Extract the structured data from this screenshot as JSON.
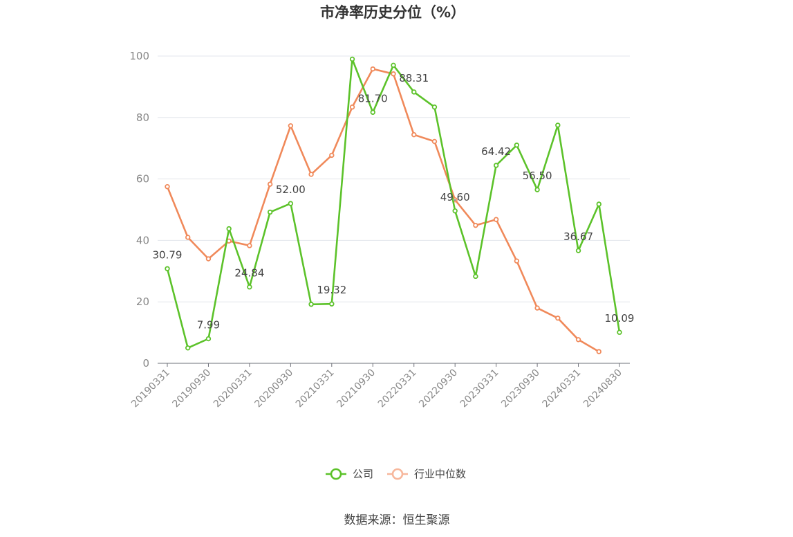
{
  "chart_data": {
    "type": "line",
    "title": "市净率历史分位（%）",
    "x": [
      "20190331",
      "20190630",
      "20190930",
      "20191231",
      "20200331",
      "20200630",
      "20200930",
      "20201231",
      "20210331",
      "20210630",
      "20210930",
      "20211231",
      "20220331",
      "20220630",
      "20220930",
      "20221231",
      "20230331",
      "20230630",
      "20230930",
      "20231231",
      "20240331",
      "20240630",
      "20240830"
    ],
    "x_tick_labels": [
      "20190331",
      "20190930",
      "20200331",
      "20200930",
      "20210331",
      "20210930",
      "20220331",
      "20220930",
      "20230331",
      "20230930",
      "20240331",
      "20240830"
    ],
    "ylim": [
      0,
      100
    ],
    "y_ticks": [
      "0",
      "20",
      "40",
      "60",
      "80",
      "100"
    ],
    "grid": true,
    "legend_position": "bottom",
    "series": [
      {
        "name": "公司",
        "color": "#5cc22a",
        "values": [
          30.79,
          5.0,
          7.99,
          43.8,
          24.84,
          49.2,
          52.0,
          19.2,
          19.32,
          99.0,
          81.7,
          97.0,
          88.31,
          83.4,
          49.6,
          28.3,
          64.42,
          71.0,
          56.5,
          77.5,
          36.67,
          51.8,
          10.09
        ],
        "labels": [
          "30.79",
          "",
          "7.99",
          "",
          "24.84",
          "",
          "52.00",
          "",
          "19.32",
          "",
          "81.70",
          "",
          "88.31",
          "",
          "49.60",
          "",
          "64.42",
          "",
          "56.50",
          "",
          "36.67",
          "",
          "10.09"
        ]
      },
      {
        "name": "行业中位数",
        "color": "#f0895a",
        "values": [
          57.5,
          41.0,
          34.0,
          39.8,
          38.3,
          58.3,
          77.3,
          61.5,
          67.7,
          83.4,
          95.8,
          94.2,
          74.4,
          72.2,
          53.2,
          44.9,
          46.8,
          33.3,
          18.0,
          14.7,
          7.7,
          3.8,
          null
        ]
      }
    ]
  },
  "source_text": "数据来源：恒生聚源"
}
